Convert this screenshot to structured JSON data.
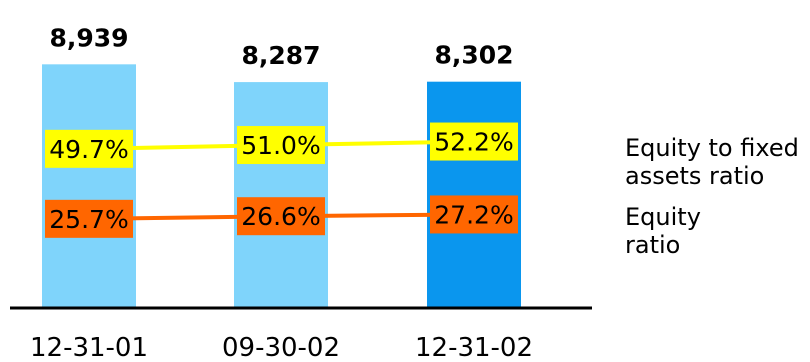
{
  "chart_data": {
    "type": "bar",
    "categories": [
      "12-31-01",
      "09-30-02",
      "12-31-02"
    ],
    "values": [
      8939,
      8287,
      8302
    ],
    "value_labels": [
      "8,939",
      "8,287",
      "8,302"
    ],
    "bar_colors": [
      "#7fd4fb",
      "#7fd4fb",
      "#0a96ee"
    ],
    "series": [
      {
        "name": "Equity to fixed assets ratio",
        "type": "line",
        "values": [
          49.7,
          51.0,
          52.2
        ],
        "labels": [
          "49.7%",
          "51.0%",
          "52.2%"
        ],
        "color": "#ffff00"
      },
      {
        "name": "Equity ratio",
        "type": "line",
        "values": [
          25.7,
          26.6,
          27.2
        ],
        "labels": [
          "25.7%",
          "26.6%",
          "27.2%"
        ],
        "color": "#ff6600"
      }
    ],
    "legend": {
      "position": "right",
      "items": [
        {
          "lines": [
            "Equity to fixed",
            "assets ratio"
          ],
          "color": "#ffff00"
        },
        {
          "lines": [
            "Equity",
            "ratio"
          ],
          "color": "#ff6600"
        }
      ]
    },
    "grid": false
  }
}
